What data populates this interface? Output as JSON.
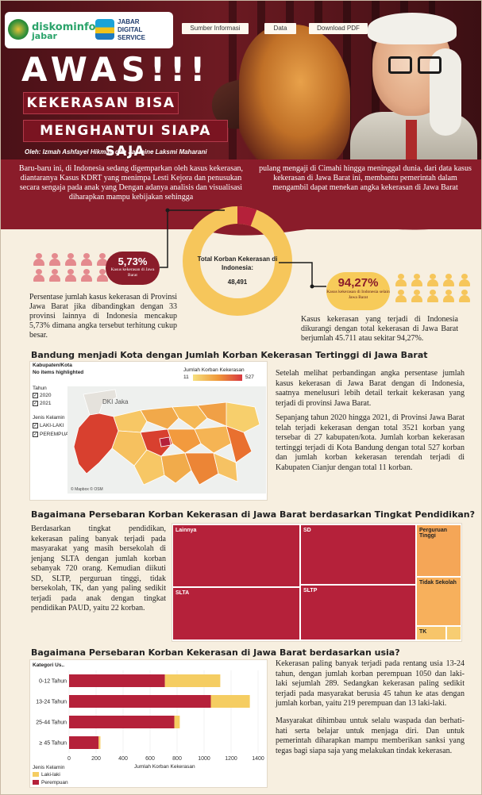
{
  "header": {
    "logo_diskominfo_1": "diskominfo",
    "logo_diskominfo_2": "jabar",
    "logo_jds": "JABAR DIGITAL SERVICE",
    "buttons": [
      "Sumber Informasi",
      "Data",
      "Download PDF"
    ],
    "title": "AWAS!!!",
    "tagline_1": "KEKERASAN BISA",
    "tagline_2": "MENGHANTUI SIAPA SAJA",
    "byline": "Oleh: Izmah Ashfayel Hikmah dan Jasmine Laksmi Maharani"
  },
  "intro": {
    "left": "Baru-baru ini, di Indonesia sedang digemparkan oleh kasus kekerasan, diantaranya Kasus KDRT yang menimpa Lesti Kejora dan penusukan secara sengaja pada anak yang Dengan adanya analisis dan visualisasi diharapkan mampu kebijakan sehingga",
    "right": "pulang mengaji di Cimahi hingga meninggal dunia. dari data kasus kekerasan di Jawa Barat ini, membantu pemerintah dalam mengambil dapat menekan angka kekerasan di Jawa Barat"
  },
  "donut": {
    "label": "Total Korban Kekerasan di Indonesia:",
    "value": "48,491",
    "jabar_share": 5.73
  },
  "stat_left": {
    "percent": "5,73%",
    "caption": "Kasus kekerasan di Jawa Barat",
    "text": "Persentase jumlah kasus kekerasan di Provinsi Jawa Barat jika dibandingkan dengan 33 provinsi lainnya di Indonesia mencakup 5,73% dimana angka tersebut terhitung cukup besar."
  },
  "stat_right": {
    "percent": "94,27%",
    "caption": "Kasus kekerasan di Indonesia selain Jawa Barat",
    "text": "Kasus kekerasan yang terjadi di Indonesia dikurangi dengan total kekerasan di Jawa Barat berjumlah 45.711 atau sekitar 94,27%."
  },
  "section_map": {
    "title": "Bandung menjadi Kota dengan Jumlah Korban Kekerasan Tertinggi di Jawa Barat",
    "filter_label": "Kabupaten/Kota",
    "filter_value": "No items highlighted",
    "tahun_label": "Tahun",
    "tahun_options": [
      "2020",
      "2021"
    ],
    "jk_label": "Jenis Kelamin",
    "jk_options": [
      "LAKI-LAKI",
      "PEREMPUAN"
    ],
    "legend_title": "Jumlah Korban Kekerasan",
    "legend_min": "11",
    "legend_max": "527",
    "map_city_label": "DKI Jaka",
    "credit": "© Mapbox © OSM",
    "para_1": "Setelah melihat perbandingan angka persentase jumlah kasus kekerasan di Jawa Barat dengan di Indonesia, saatnya menelusuri lebih detail terkait kekerasan yang terjadi di provinsi Jawa Barat.",
    "para_2": "Sepanjang tahun 2020 hingga 2021, di Provinsi Jawa Barat telah terjadi kekerasan dengan total 3521 korban yang tersebar di 27 kabupaten/kota. Jumlah korban kekerasan tertinggi terjadi di Kota Bandung dengan total 527 korban dan jumlah korban kekerasan terendah terjadi di Kabupaten Cianjur dengan total 11 korban."
  },
  "section_edu": {
    "title": "Bagaimana Persebaran Korban Kekerasan di Jawa Barat berdasarkan Tingkat Pendidikan?",
    "para": "Berdasarkan tingkat pendidikan, kekerasan paling banyak terjadi pada masyarakat yang masih bersekolah di jenjang SLTA dengan jumlah korban sebanyak 720 orang. Kemudian diikuti SD, SLTP, perguruan tinggi, tidak bersekolah, TK, dan yang paling sedikit terjadi pada anak dengan tingkat pendidikan PAUD, yaitu 22 korban.",
    "treemap": [
      {
        "label": "Lainnya",
        "color": "#b5213a"
      },
      {
        "label": "SLTA",
        "color": "#b5213a"
      },
      {
        "label": "SD",
        "color": "#b5213a"
      },
      {
        "label": "SLTP",
        "color": "#b5213a"
      },
      {
        "label": "Perguruan Tinggi",
        "color": "#f5a657"
      },
      {
        "label": "Tidak Sekolah",
        "color": "#f7b05c"
      },
      {
        "label": "TK",
        "color": "#f7c56a"
      }
    ]
  },
  "section_age": {
    "title": "Bagaimana Persebaran Korban Kekerasan di Jawa Barat berdasarkan usia?",
    "legend_title": "Jenis Kelamin",
    "axis_cat_title": "Kategori Us..",
    "axis_x_title": "Jumlah Korban Kekerasan",
    "para_1": "Kekerasan paling banyak terjadi pada rentang usia 13-24 tahun, dengan jumlah korban perempuan 1050 dan laki-laki sejumlah 289. Sedangkan kekerasan paling sedikit terjadi pada masyarakat berusia 45 tahun ke atas dengan jumlah korban, yaitu 219 perempuan dan 13 laki-laki.",
    "para_2": "Masyarakat dihimbau untuk selalu waspada dan berhati-hati serta belajar untuk menjaga diri. Dan untuk pemerintah diharapkan mampu memberikan sanksi yang tegas bagi siapa saja yang melakukan tindak kekerasan."
  },
  "chart_data": {
    "type": "bar",
    "orientation": "horizontal",
    "stacked": true,
    "title": "Bagaimana Persebaran Korban Kekerasan di Jawa Barat berdasarkan usia?",
    "xlabel": "Jumlah Korban Kekerasan",
    "ylabel": "Kategori Us..",
    "categories": [
      "0-12 Tahun",
      "13-24 Tahun",
      "25-44 Tahun",
      "≥ 45 Tahun"
    ],
    "series": [
      {
        "name": "Perempuan",
        "color": "#b5213a",
        "values": [
          710,
          1050,
          780,
          219
        ]
      },
      {
        "name": "Laki-laki",
        "color": "#f5cd62",
        "values": [
          410,
          289,
          40,
          13
        ]
      }
    ],
    "xlim": [
      0,
      1400
    ],
    "xticks": [
      "0",
      "200",
      "400",
      "600",
      "800",
      "1000",
      "1200",
      "1400"
    ]
  }
}
